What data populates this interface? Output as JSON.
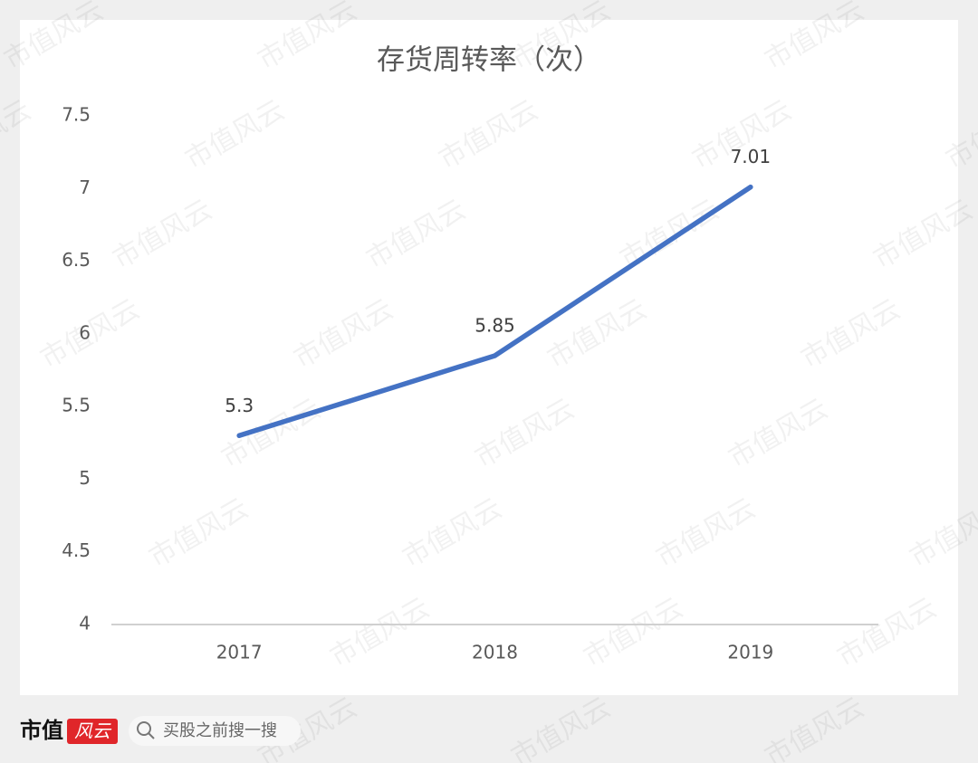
{
  "chart_data": {
    "type": "line",
    "title": "存货周转率（次）",
    "categories": [
      "2017",
      "2018",
      "2019"
    ],
    "series": [
      {
        "name": "存货周转率",
        "color": "#4472c4",
        "values": [
          5.3,
          5.85,
          7.01
        ]
      }
    ],
    "ylim": [
      4,
      7.5
    ],
    "yticks": [
      4,
      4.5,
      5,
      5.5,
      6,
      6.5,
      7,
      7.5
    ],
    "grid": false,
    "data_labels": true
  },
  "watermark": "市值风云",
  "footer": {
    "logo_text": "市值",
    "logo_badge": "风云",
    "search_placeholder": "买股之前搜一搜"
  }
}
